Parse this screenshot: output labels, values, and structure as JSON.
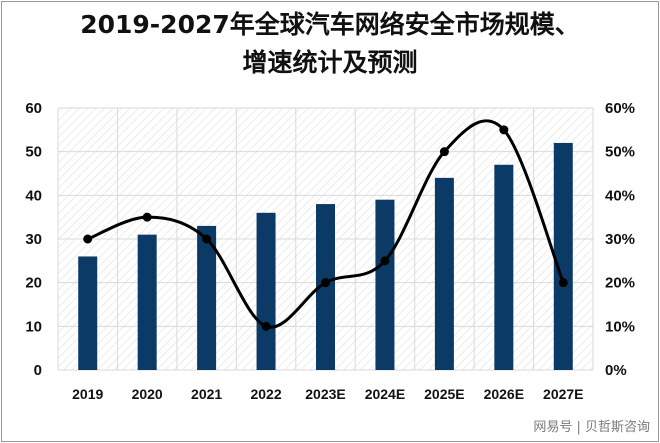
{
  "title_line1": "2019-2027年全球汽车网络安全市场规模、",
  "title_line2": "增速统计及预测",
  "watermark": "网易号 | 贝哲斯咨询",
  "colors": {
    "bar": "#0b3a66",
    "line": "#000000",
    "grid": "#d9d9d9"
  },
  "chart_data": {
    "type": "bar",
    "categories": [
      "2019",
      "2020",
      "2021",
      "2022",
      "2023E",
      "2024E",
      "2025E",
      "2026E",
      "2027E"
    ],
    "series": [
      {
        "type": "bar",
        "axis": "left",
        "values": [
          26,
          31,
          33,
          36,
          38,
          39,
          44,
          47,
          52
        ]
      },
      {
        "type": "line",
        "axis": "right",
        "smooth": true,
        "values": [
          0.3,
          0.35,
          0.3,
          0.1,
          0.2,
          0.25,
          0.5,
          0.55,
          0.2
        ]
      }
    ],
    "ylim_left": [
      0,
      60
    ],
    "yticks_left": [
      "0",
      "10",
      "20",
      "30",
      "40",
      "50",
      "60"
    ],
    "ylim_right": [
      0,
      0.6
    ],
    "yticks_right": [
      "0%",
      "10%",
      "20%",
      "30%",
      "40%",
      "50%",
      "60%"
    ],
    "grid": true,
    "legend": "none"
  }
}
